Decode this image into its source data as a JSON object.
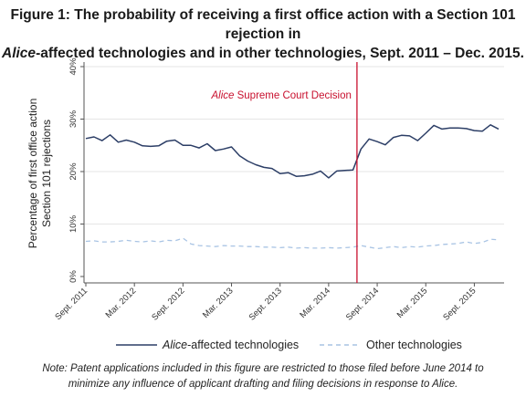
{
  "figure": {
    "title_line1": "Figure 1: The probability of receiving a first office action with a Section 101 rejection in",
    "title_line2_italic": "Alice",
    "title_line2_rest": "-affected technologies and in other technologies, Sept. 2011 – Dec. 2015.",
    "note_line1": "Note: Patent applications included in this figure are restricted to those filed before June 2014 to",
    "note_line2": "minimize any influence of applicant drafting and filing decisions in response to Alice."
  },
  "chart_data": {
    "type": "line",
    "ylabel_line1": "Percentage of first office action",
    "ylabel_line2": "Section 101 rejections",
    "ylim": [
      0,
      40
    ],
    "yticks": [
      0,
      10,
      20,
      30,
      40
    ],
    "ytick_labels": [
      "0%",
      "10%",
      "20%",
      "30%",
      "40%"
    ],
    "xtick_labels": [
      "Sept. 2011",
      "Mar. 2012",
      "Sept. 2012",
      "Mar. 2013",
      "Sept. 2013",
      "Mar. 2014",
      "Sept. 2014",
      "Mar. 2015",
      "Sept. 2015"
    ],
    "xtick_month_index": [
      0,
      6,
      12,
      18,
      24,
      30,
      36,
      42,
      48
    ],
    "x_month_count": 52,
    "grid": true,
    "legend_position": "bottom",
    "annotation": {
      "month_index": 33.5,
      "label_italic": "Alice",
      "label_rest": " Supreme Court Decision",
      "color": "#c8102e"
    },
    "series": [
      {
        "name": "Alice-affected technologies",
        "name_italic": "Alice",
        "name_rest": "-affected technologies",
        "style": "solid",
        "color": "#2c3e66",
        "values": [
          26.3,
          26.6,
          25.9,
          27.0,
          25.6,
          26.0,
          25.6,
          24.9,
          24.8,
          24.9,
          25.8,
          26.0,
          25.0,
          25.0,
          24.5,
          25.3,
          24.0,
          24.3,
          24.7,
          23.0,
          22.0,
          21.3,
          20.8,
          20.6,
          19.6,
          19.8,
          19.1,
          19.2,
          19.5,
          20.1,
          18.8,
          20.1,
          20.2,
          20.3,
          24.3,
          26.2,
          25.7,
          25.1,
          26.5,
          26.9,
          26.8,
          25.9,
          27.3,
          28.8,
          28.1,
          28.3,
          28.3,
          28.2,
          27.8,
          27.7,
          28.9,
          28.1
        ]
      },
      {
        "name": "Other technologies",
        "style": "dashed",
        "color": "#a9c4e4",
        "values": [
          6.7,
          6.8,
          6.6,
          6.6,
          6.7,
          6.9,
          6.7,
          6.6,
          6.8,
          6.6,
          6.9,
          6.8,
          7.3,
          6.2,
          5.9,
          5.8,
          5.7,
          5.9,
          5.8,
          5.8,
          5.7,
          5.7,
          5.6,
          5.6,
          5.5,
          5.6,
          5.4,
          5.5,
          5.4,
          5.4,
          5.5,
          5.4,
          5.5,
          5.6,
          5.9,
          5.6,
          5.3,
          5.5,
          5.7,
          5.5,
          5.7,
          5.6,
          5.8,
          5.9,
          6.1,
          6.2,
          6.3,
          6.6,
          6.3,
          6.5,
          7.1,
          7.0
        ]
      }
    ]
  }
}
